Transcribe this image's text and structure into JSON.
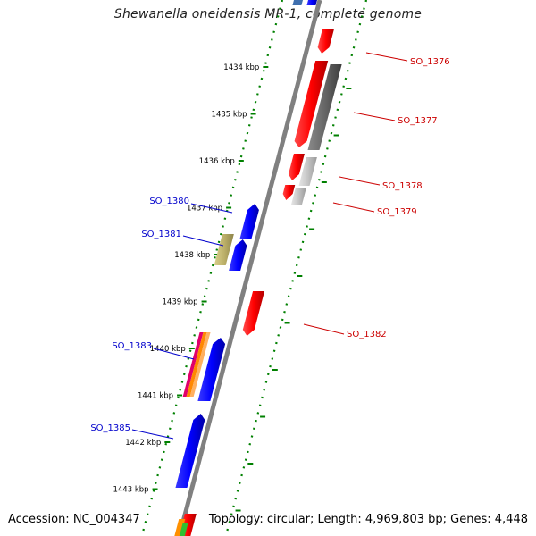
{
  "title": "Shewanella oneidensis MR-1, complete genome",
  "footer": {
    "accession": "Accession: NC_004347",
    "summary": "Topology: circular; Length: 4,969,803 bp; Genes: 4,448"
  },
  "colors": {
    "forward_strand": "#0000ff",
    "reverse_strand": "#ff0000",
    "backbone": "#808080",
    "tick": "#008000",
    "label_forward": "#0000cc",
    "label_reverse": "#cc0000"
  },
  "ticks": [
    "1434 kbp",
    "1435 kbp",
    "1436 kbp",
    "1437 kbp",
    "1438 kbp",
    "1439 kbp",
    "1440 kbp",
    "1441 kbp",
    "1442 kbp",
    "1443 kbp"
  ],
  "gene_labels": [
    {
      "text": "SO_1376",
      "strand": "reverse"
    },
    {
      "text": "SO_1377",
      "strand": "reverse"
    },
    {
      "text": "SO_1378",
      "strand": "reverse"
    },
    {
      "text": "SO_1379",
      "strand": "reverse"
    },
    {
      "text": "SO_1380",
      "strand": "forward"
    },
    {
      "text": "SO_1381",
      "strand": "forward"
    },
    {
      "text": "SO_1382",
      "strand": "reverse"
    },
    {
      "text": "SO_1383",
      "strand": "forward"
    },
    {
      "text": "SO_1385",
      "strand": "forward"
    }
  ]
}
